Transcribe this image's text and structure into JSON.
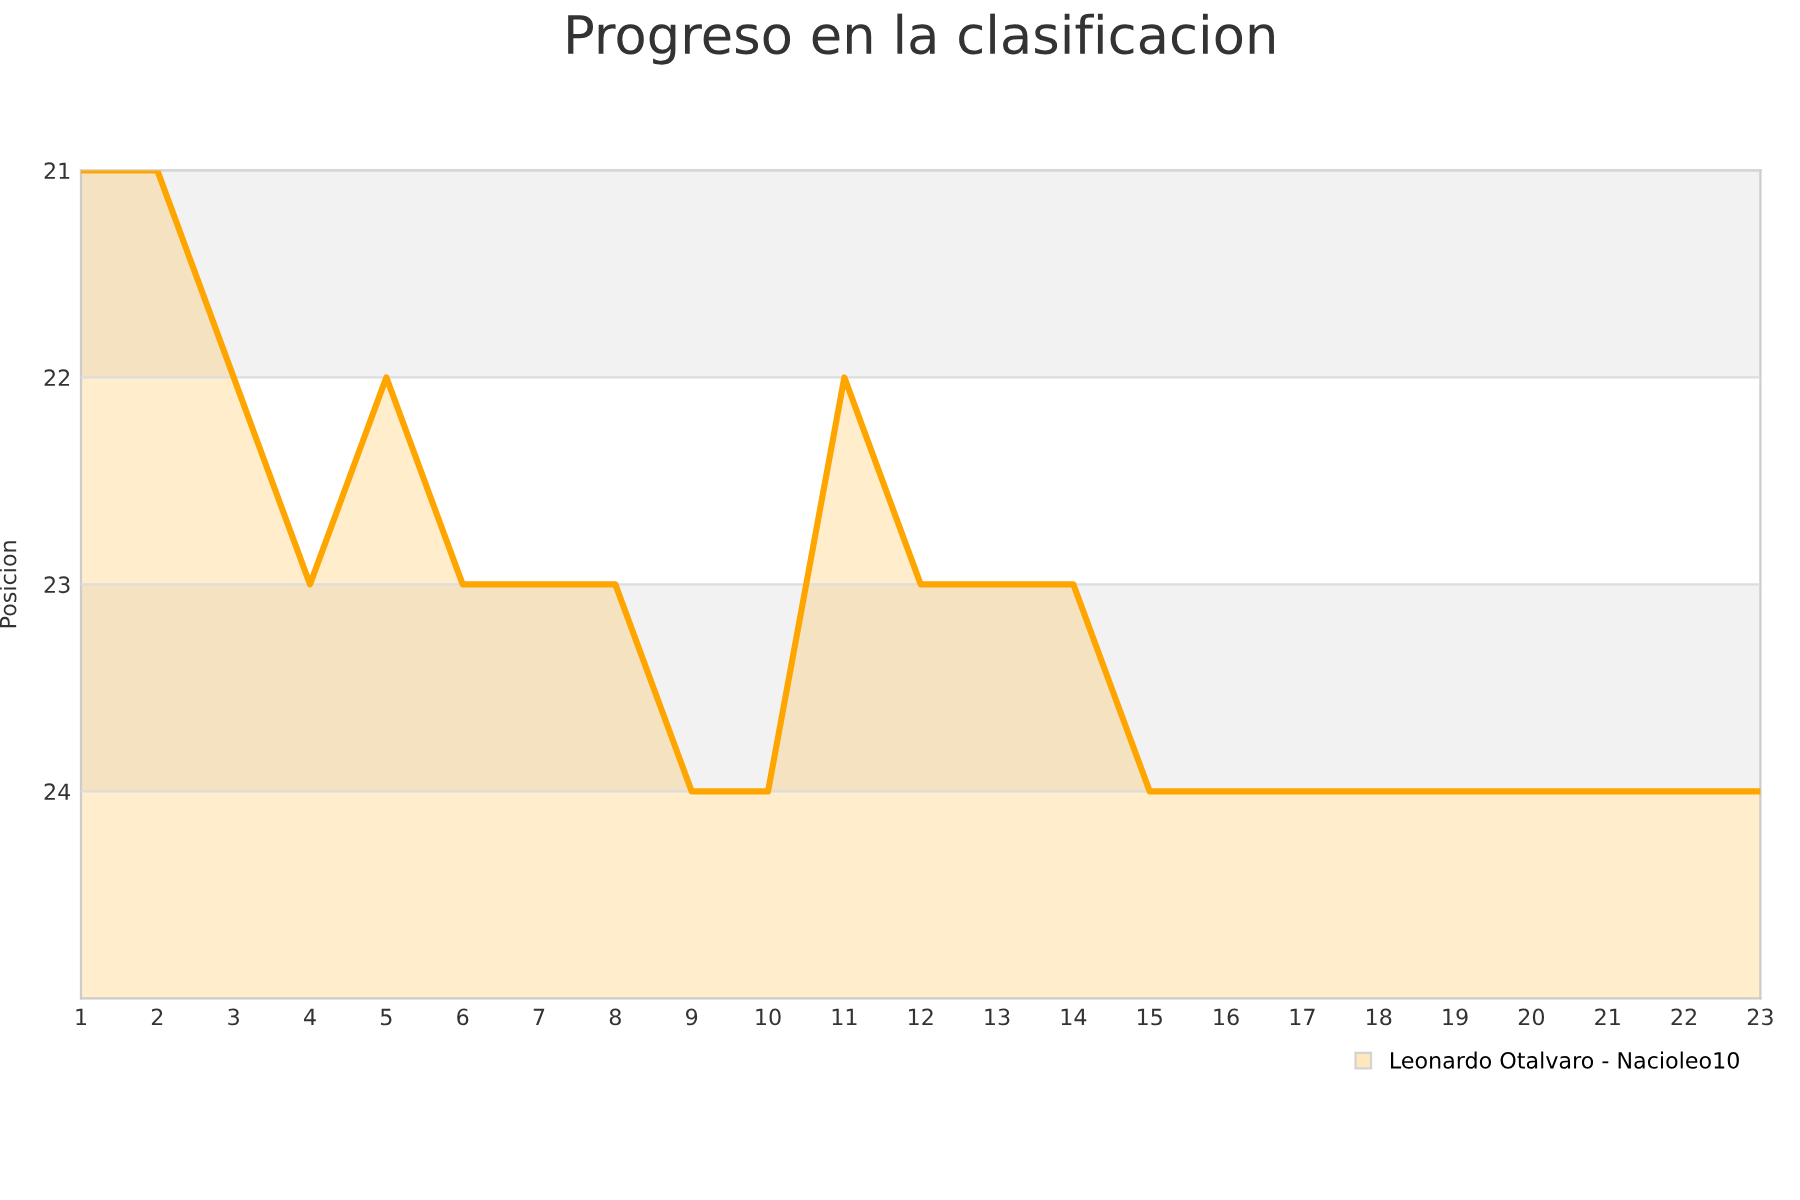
{
  "chart_data": {
    "type": "area",
    "title": "Progreso en la clasificacion",
    "ylabel": "Posicion",
    "x": [
      1,
      2,
      3,
      4,
      5,
      6,
      7,
      8,
      9,
      10,
      11,
      12,
      13,
      14,
      15,
      16,
      17,
      18,
      19,
      20,
      21,
      22,
      23
    ],
    "series": [
      {
        "name": "Leonardo Otalvaro - Nacioleo10",
        "color": "#ffa500",
        "values": [
          21,
          21,
          22,
          23,
          22,
          23,
          23,
          23,
          24,
          24,
          22,
          23,
          23,
          23,
          24,
          24,
          24,
          24,
          24,
          24,
          24,
          24,
          24
        ]
      }
    ],
    "xlim": [
      1,
      23
    ],
    "xticks": [
      1,
      2,
      3,
      4,
      5,
      6,
      7,
      8,
      9,
      10,
      11,
      12,
      13,
      14,
      15,
      16,
      17,
      18,
      19,
      20,
      21,
      22,
      23
    ],
    "ylim": [
      25,
      21
    ],
    "yticks": [
      21,
      22,
      23,
      24
    ],
    "bands": [
      {
        "axis": "y",
        "from": 21,
        "to": 22,
        "color": "#f2f2f2"
      },
      {
        "axis": "y",
        "from": 23,
        "to": 24,
        "color": "#f2f2f2"
      }
    ],
    "grid": "y",
    "legend": "bottom right"
  }
}
